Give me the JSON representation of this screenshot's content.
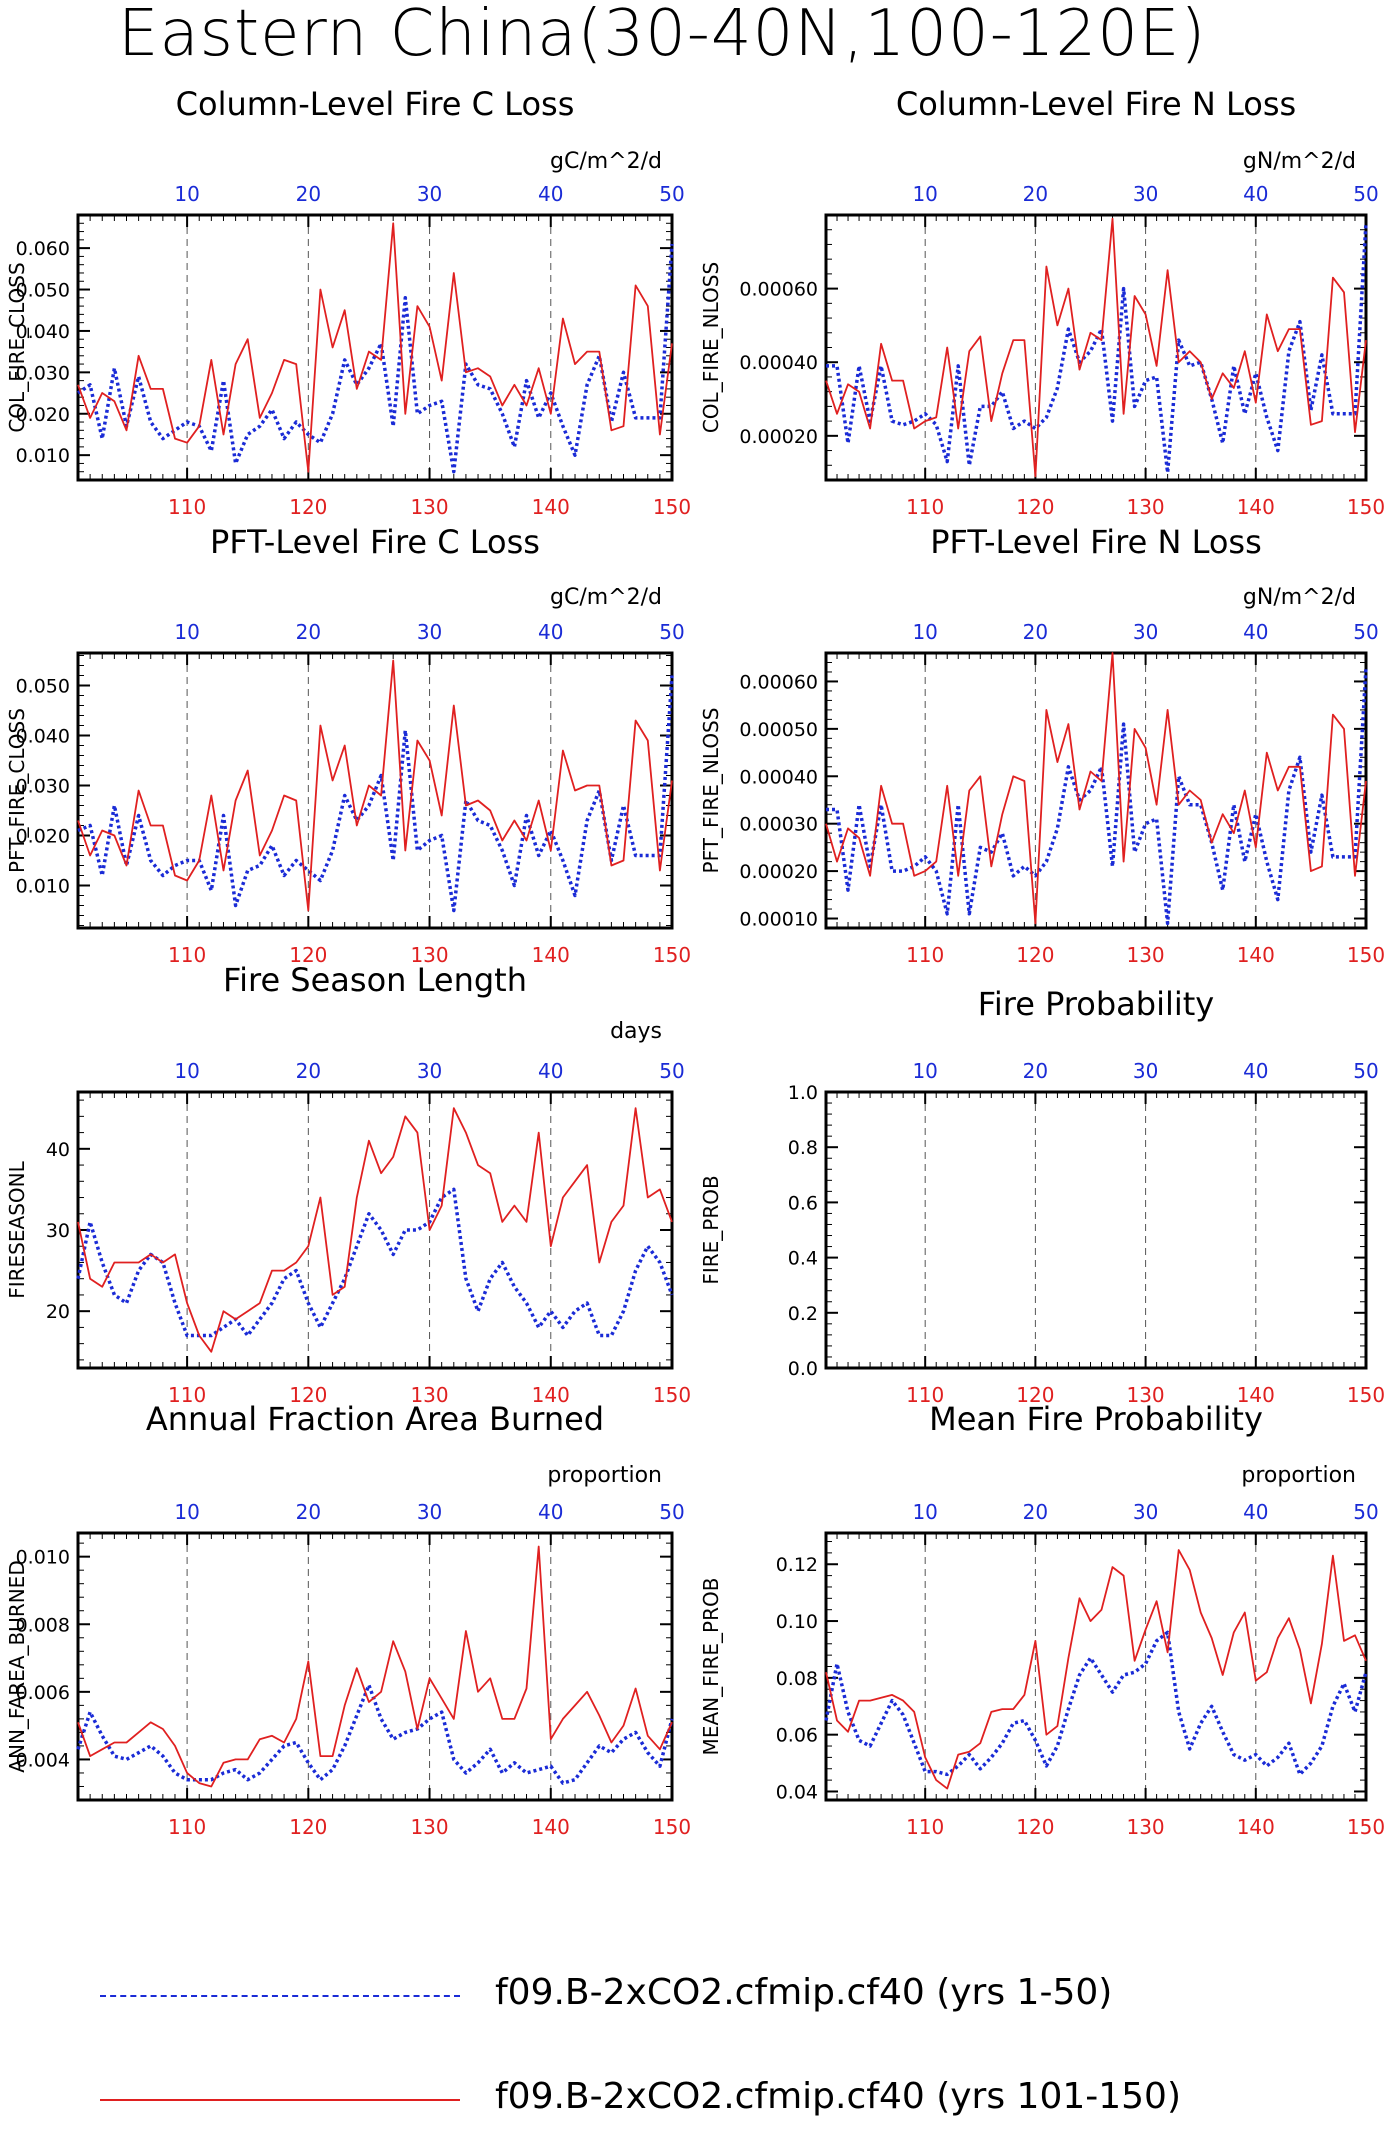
{
  "title": "Eastern China(30-40N,100-120E)",
  "colors": {
    "series_a": "#1a2bd6",
    "series_b": "#e02020",
    "grid": "#555555"
  },
  "legend": {
    "series_a": "f09.B-2xCO2.cfmip.cf40 (yrs 1-50)",
    "series_b": "f09.B-2xCO2.cfmip.cf40 (yrs 101-150)"
  },
  "chart_data": [
    {
      "type": "line",
      "title": "Column-Level Fire C Loss",
      "ylabel": "COL_FIRE_CLOSS",
      "units": "gC/m^2/d",
      "ylim": [
        0.004,
        0.068
      ],
      "yticks": [
        "0.010",
        "0.020",
        "0.030",
        "0.040",
        "0.050",
        "0.060"
      ],
      "xlim_bottom": [
        101,
        150
      ],
      "xticks_bottom": [
        "110",
        "120",
        "130",
        "140",
        "150"
      ],
      "xticks_top": [
        "10",
        "20",
        "30",
        "40",
        "50"
      ],
      "gridlines_x": [
        110,
        120,
        130,
        140
      ],
      "series": [
        {
          "values": [
            0.025,
            0.027,
            0.014,
            0.031,
            0.017,
            0.029,
            0.018,
            0.014,
            0.016,
            0.018,
            0.017,
            0.011,
            0.028,
            0.008,
            0.015,
            0.017,
            0.021,
            0.014,
            0.018,
            0.015,
            0.013,
            0.02,
            0.033,
            0.027,
            0.031,
            0.037,
            0.017,
            0.048,
            0.02,
            0.022,
            0.023,
            0.006,
            0.032,
            0.027,
            0.026,
            0.02,
            0.012,
            0.028,
            0.019,
            0.025,
            0.017,
            0.01,
            0.027,
            0.034,
            0.018,
            0.03,
            0.019,
            0.019,
            0.019,
            0.061
          ]
        },
        {
          "values": [
            0.027,
            0.019,
            0.025,
            0.023,
            0.016,
            0.034,
            0.026,
            0.026,
            0.014,
            0.013,
            0.017,
            0.033,
            0.015,
            0.032,
            0.038,
            0.019,
            0.025,
            0.033,
            0.032,
            0.006,
            0.05,
            0.036,
            0.045,
            0.026,
            0.035,
            0.033,
            0.066,
            0.02,
            0.046,
            0.041,
            0.028,
            0.054,
            0.03,
            0.031,
            0.029,
            0.022,
            0.027,
            0.022,
            0.031,
            0.02,
            0.043,
            0.032,
            0.035,
            0.035,
            0.016,
            0.017,
            0.051,
            0.046,
            0.015,
            0.037
          ]
        }
      ]
    },
    {
      "type": "line",
      "title": "Column-Level Fire N Loss",
      "ylabel": "COL_FIRE_NLOSS",
      "units": "gN/m^2/d",
      "ylim": [
        8e-05,
        0.0008
      ],
      "yticks": [
        "0.00020",
        "0.00040",
        "0.00060"
      ],
      "xlim_bottom": [
        101,
        150
      ],
      "xticks_bottom": [
        "110",
        "120",
        "130",
        "140",
        "150"
      ],
      "xticks_top": [
        "10",
        "20",
        "30",
        "40",
        "50"
      ],
      "gridlines_x": [
        110,
        120,
        130,
        140
      ],
      "series": [
        {
          "values": [
            0.00039,
            0.00039,
            0.00018,
            0.00039,
            0.00024,
            0.00039,
            0.00024,
            0.00023,
            0.00024,
            0.00026,
            0.00023,
            0.00013,
            0.00039,
            0.00012,
            0.00028,
            0.00028,
            0.00032,
            0.00022,
            0.00024,
            0.00022,
            0.00025,
            0.00033,
            0.00049,
            0.0004,
            0.00043,
            0.00049,
            0.00024,
            0.0006,
            0.00028,
            0.00035,
            0.00036,
            0.0001,
            0.00046,
            0.00039,
            0.0004,
            0.0003,
            0.00018,
            0.00039,
            0.00026,
            0.00037,
            0.00025,
            0.00016,
            0.00043,
            0.00051,
            0.00027,
            0.00042,
            0.00026,
            0.00026,
            0.00026,
            0.00078
          ]
        },
        {
          "values": [
            0.00035,
            0.00026,
            0.00034,
            0.00032,
            0.00022,
            0.00045,
            0.00035,
            0.00035,
            0.00022,
            0.00024,
            0.00025,
            0.00044,
            0.00022,
            0.00043,
            0.00047,
            0.00024,
            0.00037,
            0.00046,
            0.00046,
            9e-05,
            0.00066,
            0.0005,
            0.0006,
            0.00038,
            0.00048,
            0.00046,
            0.00079,
            0.00026,
            0.00058,
            0.00053,
            0.00039,
            0.00065,
            0.0004,
            0.00043,
            0.0004,
            0.0003,
            0.00037,
            0.00033,
            0.00043,
            0.00029,
            0.00053,
            0.00043,
            0.00049,
            0.00049,
            0.00023,
            0.00024,
            0.00063,
            0.00059,
            0.00021,
            0.00046
          ]
        }
      ]
    },
    {
      "type": "line",
      "title": "PFT-Level Fire C Loss",
      "ylabel": "PFT_FIRE_CLOSS",
      "units": "gC/m^2/d",
      "ylim": [
        0.0015,
        0.0565
      ],
      "yticks": [
        "0.010",
        "0.020",
        "0.030",
        "0.040",
        "0.050"
      ],
      "xlim_bottom": [
        101,
        150
      ],
      "xticks_bottom": [
        "110",
        "120",
        "130",
        "140",
        "150"
      ],
      "xticks_top": [
        "10",
        "20",
        "30",
        "40",
        "50"
      ],
      "gridlines_x": [
        110,
        120,
        130,
        140
      ],
      "series": [
        {
          "values": [
            0.021,
            0.022,
            0.012,
            0.026,
            0.014,
            0.024,
            0.015,
            0.012,
            0.014,
            0.015,
            0.015,
            0.009,
            0.024,
            0.006,
            0.013,
            0.014,
            0.018,
            0.012,
            0.015,
            0.013,
            0.011,
            0.017,
            0.028,
            0.023,
            0.026,
            0.032,
            0.015,
            0.041,
            0.017,
            0.019,
            0.02,
            0.005,
            0.027,
            0.023,
            0.022,
            0.017,
            0.01,
            0.024,
            0.016,
            0.021,
            0.015,
            0.008,
            0.023,
            0.029,
            0.015,
            0.026,
            0.016,
            0.016,
            0.016,
            0.052
          ]
        },
        {
          "values": [
            0.023,
            0.016,
            0.021,
            0.02,
            0.014,
            0.029,
            0.022,
            0.022,
            0.012,
            0.011,
            0.015,
            0.028,
            0.013,
            0.027,
            0.033,
            0.016,
            0.021,
            0.028,
            0.027,
            0.005,
            0.042,
            0.031,
            0.038,
            0.022,
            0.03,
            0.028,
            0.055,
            0.017,
            0.039,
            0.035,
            0.024,
            0.046,
            0.026,
            0.027,
            0.025,
            0.019,
            0.023,
            0.019,
            0.027,
            0.017,
            0.037,
            0.029,
            0.03,
            0.03,
            0.014,
            0.015,
            0.043,
            0.039,
            0.013,
            0.031
          ]
        }
      ]
    },
    {
      "type": "line",
      "title": "PFT-Level Fire N Loss",
      "ylabel": "PFT_FIRE_NLOSS",
      "units": "gN/m^2/d",
      "ylim": [
        8e-05,
        0.00066
      ],
      "yticks": [
        "0.00010",
        "0.00020",
        "0.00030",
        "0.00040",
        "0.00050",
        "0.00060"
      ],
      "xlim_bottom": [
        101,
        150
      ],
      "xticks_bottom": [
        "110",
        "120",
        "130",
        "140",
        "150"
      ],
      "xticks_top": [
        "10",
        "20",
        "30",
        "40",
        "50"
      ],
      "gridlines_x": [
        110,
        120,
        130,
        140
      ],
      "series": [
        {
          "values": [
            0.00033,
            0.00033,
            0.00016,
            0.00034,
            0.00021,
            0.00034,
            0.0002,
            0.0002,
            0.00021,
            0.00023,
            0.0002,
            0.00011,
            0.00034,
            0.00011,
            0.00025,
            0.00024,
            0.00028,
            0.00019,
            0.00021,
            0.00019,
            0.00022,
            0.00029,
            0.00042,
            0.00035,
            0.00037,
            0.00042,
            0.00021,
            0.00051,
            0.00024,
            0.0003,
            0.00031,
            9e-05,
            0.0004,
            0.00034,
            0.00034,
            0.00026,
            0.00016,
            0.00034,
            0.00022,
            0.00032,
            0.00022,
            0.00014,
            0.00037,
            0.00044,
            0.00024,
            0.00036,
            0.00023,
            0.00023,
            0.00023,
            0.00063
          ]
        },
        {
          "values": [
            0.0003,
            0.00022,
            0.00029,
            0.00027,
            0.00019,
            0.00038,
            0.0003,
            0.0003,
            0.00019,
            0.0002,
            0.00022,
            0.00038,
            0.00019,
            0.00037,
            0.0004,
            0.00021,
            0.00032,
            0.0004,
            0.00039,
            9e-05,
            0.00054,
            0.00043,
            0.00051,
            0.00033,
            0.00041,
            0.00039,
            0.00066,
            0.00022,
            0.0005,
            0.00046,
            0.00034,
            0.00054,
            0.00034,
            0.00037,
            0.00035,
            0.00026,
            0.00032,
            0.00028,
            0.00037,
            0.00025,
            0.00045,
            0.00037,
            0.00042,
            0.00042,
            0.0002,
            0.00021,
            0.00053,
            0.0005,
            0.00019,
            0.00039
          ]
        }
      ]
    },
    {
      "type": "line",
      "title": "Fire Season Length",
      "ylabel": "FIRESEASONL",
      "units": "days",
      "ylim": [
        13,
        47
      ],
      "yticks": [
        "20",
        "30",
        "40"
      ],
      "xlim_bottom": [
        101,
        150
      ],
      "xticks_bottom": [
        "110",
        "120",
        "130",
        "140",
        "150"
      ],
      "xticks_top": [
        "10",
        "20",
        "30",
        "40",
        "50"
      ],
      "gridlines_x": [
        110,
        120,
        130,
        140
      ],
      "series": [
        {
          "values": [
            24,
            31,
            26,
            22,
            21,
            25,
            27,
            26,
            21,
            17,
            17,
            17,
            18,
            19,
            17,
            19,
            21,
            24,
            25,
            21,
            18,
            21,
            24,
            28,
            32,
            30,
            27,
            30,
            30,
            31,
            34,
            35,
            24,
            20,
            24,
            26,
            23,
            21,
            18,
            20,
            18,
            20,
            21,
            17,
            17,
            20,
            25,
            28,
            26,
            22
          ]
        },
        {
          "values": [
            31,
            24,
            23,
            26,
            26,
            26,
            27,
            26,
            27,
            21,
            17,
            15,
            20,
            19,
            20,
            21,
            25,
            25,
            26,
            28,
            34,
            22,
            23,
            34,
            41,
            37,
            39,
            44,
            42,
            30,
            33,
            45,
            42,
            38,
            37,
            31,
            33,
            31,
            42,
            28,
            34,
            36,
            38,
            26,
            31,
            33,
            45,
            34,
            35,
            31
          ]
        }
      ]
    },
    {
      "type": "line",
      "title": "Fire Probability",
      "ylabel": "FIRE_PROB",
      "units": "",
      "ylim": [
        0.0,
        1.0
      ],
      "yticks": [
        "0.0",
        "0.2",
        "0.4",
        "0.6",
        "0.8",
        "1.0"
      ],
      "xlim_bottom": [
        101,
        150
      ],
      "xticks_bottom": [
        "110",
        "120",
        "130",
        "140",
        "150"
      ],
      "xticks_top": [
        "10",
        "20",
        "30",
        "40",
        "50"
      ],
      "gridlines_x": [
        110,
        120,
        130,
        140
      ],
      "series": []
    },
    {
      "type": "line",
      "title": "Annual Fraction Area Burned",
      "ylabel": "ANN_FAREA_BURNED",
      "units": "proportion",
      "ylim": [
        0.0028,
        0.0107
      ],
      "yticks": [
        "0.004",
        "0.006",
        "0.008",
        "0.010"
      ],
      "xlim_bottom": [
        101,
        150
      ],
      "xticks_bottom": [
        "110",
        "120",
        "130",
        "140",
        "150"
      ],
      "xticks_top": [
        "10",
        "20",
        "30",
        "40",
        "50"
      ],
      "gridlines_x": [
        110,
        120,
        130,
        140
      ],
      "series": [
        {
          "values": [
            0.0043,
            0.0054,
            0.0047,
            0.0041,
            0.004,
            0.0042,
            0.0044,
            0.0041,
            0.0036,
            0.0034,
            0.0034,
            0.0034,
            0.0036,
            0.0037,
            0.0034,
            0.0036,
            0.004,
            0.0044,
            0.0045,
            0.0039,
            0.0034,
            0.0037,
            0.0044,
            0.0053,
            0.0062,
            0.0052,
            0.0046,
            0.0048,
            0.0049,
            0.0052,
            0.0054,
            0.004,
            0.0036,
            0.0039,
            0.0043,
            0.0036,
            0.0039,
            0.0036,
            0.0037,
            0.0038,
            0.0033,
            0.0034,
            0.0039,
            0.0044,
            0.0042,
            0.0046,
            0.0048,
            0.0042,
            0.0038,
            0.0052
          ]
        },
        {
          "values": [
            0.0051,
            0.0041,
            0.0043,
            0.0045,
            0.0045,
            0.0048,
            0.0051,
            0.0049,
            0.0044,
            0.0036,
            0.0033,
            0.0032,
            0.0039,
            0.004,
            0.004,
            0.0046,
            0.0047,
            0.0045,
            0.0052,
            0.0069,
            0.0041,
            0.0041,
            0.0056,
            0.0067,
            0.0057,
            0.006,
            0.0075,
            0.0066,
            0.0049,
            0.0064,
            0.0058,
            0.0052,
            0.0078,
            0.006,
            0.0064,
            0.0052,
            0.0052,
            0.0061,
            0.0103,
            0.0046,
            0.0052,
            0.0056,
            0.006,
            0.0053,
            0.0045,
            0.005,
            0.0061,
            0.0047,
            0.0043,
            0.0051
          ]
        }
      ]
    },
    {
      "type": "line",
      "title": "Mean Fire Probability",
      "ylabel": "MEAN_FIRE_PROB",
      "units": "proportion",
      "ylim": [
        0.037,
        0.131
      ],
      "yticks": [
        "0.04",
        "0.06",
        "0.08",
        "0.10",
        "0.12"
      ],
      "xlim_bottom": [
        101,
        150
      ],
      "xticks_bottom": [
        "110",
        "120",
        "130",
        "140",
        "150"
      ],
      "xticks_top": [
        "10",
        "20",
        "30",
        "40",
        "50"
      ],
      "gridlines_x": [
        110,
        120,
        130,
        140
      ],
      "series": [
        {
          "values": [
            0.065,
            0.085,
            0.068,
            0.058,
            0.056,
            0.064,
            0.072,
            0.067,
            0.057,
            0.047,
            0.047,
            0.046,
            0.049,
            0.053,
            0.048,
            0.052,
            0.057,
            0.064,
            0.065,
            0.058,
            0.049,
            0.056,
            0.069,
            0.081,
            0.087,
            0.081,
            0.075,
            0.081,
            0.082,
            0.085,
            0.093,
            0.096,
            0.068,
            0.055,
            0.064,
            0.07,
            0.061,
            0.053,
            0.051,
            0.053,
            0.049,
            0.052,
            0.057,
            0.046,
            0.05,
            0.056,
            0.07,
            0.078,
            0.068,
            0.082
          ]
        },
        {
          "values": [
            0.082,
            0.065,
            0.061,
            0.072,
            0.072,
            0.073,
            0.074,
            0.072,
            0.068,
            0.052,
            0.044,
            0.041,
            0.053,
            0.054,
            0.057,
            0.068,
            0.069,
            0.069,
            0.074,
            0.093,
            0.06,
            0.063,
            0.087,
            0.108,
            0.1,
            0.104,
            0.119,
            0.116,
            0.086,
            0.097,
            0.107,
            0.089,
            0.125,
            0.118,
            0.103,
            0.094,
            0.081,
            0.096,
            0.103,
            0.079,
            0.082,
            0.094,
            0.101,
            0.09,
            0.071,
            0.092,
            0.123,
            0.093,
            0.095,
            0.086
          ]
        }
      ]
    }
  ]
}
